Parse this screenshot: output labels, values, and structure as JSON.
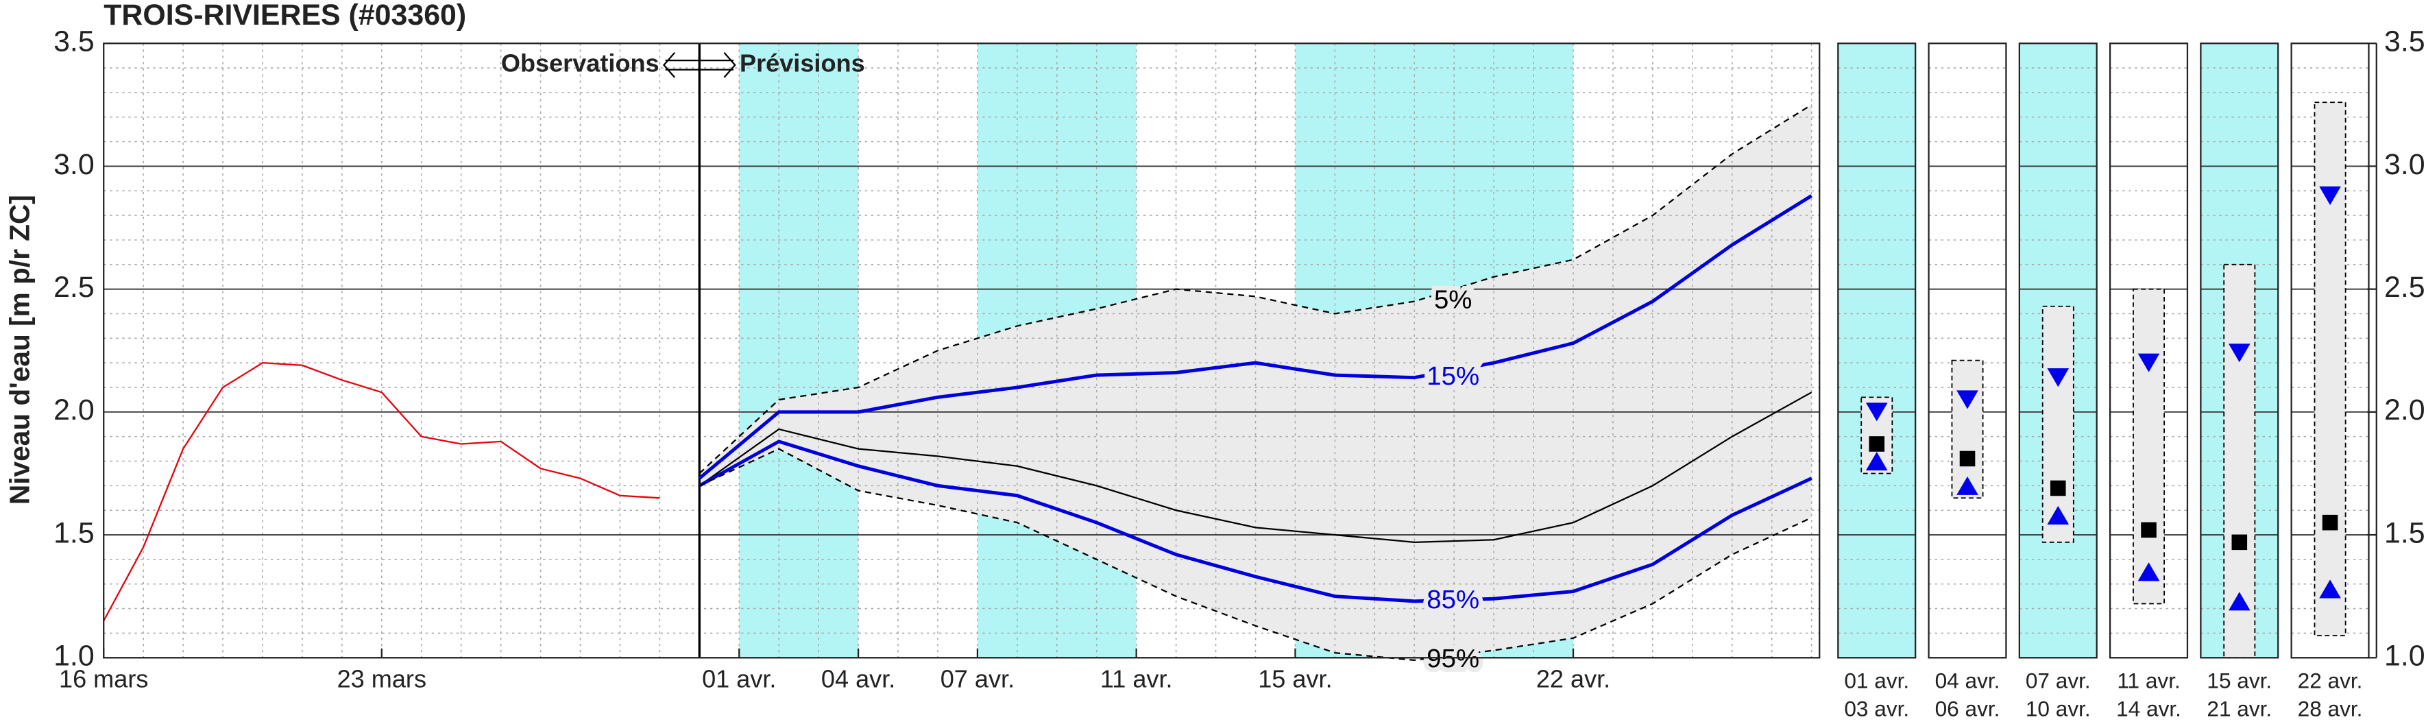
{
  "chart_data": {
    "type": "line",
    "title": "TROIS-RIVIERES (#03360)",
    "ylabel": "Niveau d'eau [m p/r ZC]",
    "annotation": {
      "left": "Observations",
      "right": "Prévisions",
      "x": 15
    },
    "xlim": [
      0,
      43.2
    ],
    "xticks": [
      {
        "value": 0,
        "label": "16 mars"
      },
      {
        "value": 7,
        "label": "23 mars"
      },
      {
        "value": 16,
        "label": "01 avr."
      },
      {
        "value": 19,
        "label": "04 avr."
      },
      {
        "value": 22,
        "label": "07 avr."
      },
      {
        "value": 26,
        "label": "11 avr."
      },
      {
        "value": 30,
        "label": "15 avr."
      },
      {
        "value": 37,
        "label": "22 avr."
      }
    ],
    "ylim": [
      1.0,
      3.5
    ],
    "yticks": [
      {
        "value": 1,
        "label": "1.0"
      },
      1.5,
      {
        "value": 2,
        "label": "2.0"
      },
      2.5,
      {
        "value": 3,
        "label": "3.0"
      },
      3.5
    ],
    "y2lim": [
      1.0,
      3.5
    ],
    "y2ticks": [
      {
        "value": 1,
        "label": "1.0"
      },
      1.5,
      {
        "value": 2,
        "label": "2.0"
      },
      2.5,
      {
        "value": 3,
        "label": "3.0"
      },
      3.5
    ],
    "grid": true,
    "shaded_periods": [
      [
        16,
        19
      ],
      [
        22,
        26
      ],
      [
        30,
        37
      ]
    ],
    "shade_color": "#b3f5f5",
    "band_color": "#ebebeb",
    "series": [
      {
        "color": "#e8000b",
        "style": "solid",
        "x": [
          0,
          1,
          2,
          3,
          4,
          5,
          6,
          7,
          8,
          9,
          10,
          11,
          12,
          13,
          14
        ],
        "values": [
          1.15,
          1.45,
          1.85,
          2.1,
          2.2,
          2.19,
          2.13,
          2.08,
          1.9,
          1.87,
          1.88,
          1.77,
          1.73,
          1.66,
          1.65
        ]
      },
      {
        "name": "5%",
        "color": "#000000",
        "style": "dashed",
        "x": [
          15,
          17,
          19,
          21,
          23,
          25,
          27,
          29,
          31,
          33,
          35,
          37,
          39,
          41,
          43
        ],
        "values": [
          1.75,
          2.05,
          2.1,
          2.25,
          2.35,
          2.42,
          2.5,
          2.47,
          2.4,
          2.45,
          2.55,
          2.62,
          2.8,
          3.05,
          3.25
        ]
      },
      {
        "name": "15%",
        "color": "#0000dd",
        "style": "solid",
        "x": [
          15,
          17,
          19,
          21,
          23,
          25,
          27,
          29,
          31,
          33,
          35,
          37,
          39,
          41,
          43
        ],
        "values": [
          1.73,
          2.0,
          2.0,
          2.06,
          2.1,
          2.15,
          2.16,
          2.2,
          2.15,
          2.14,
          2.2,
          2.28,
          2.45,
          2.68,
          2.88
        ]
      },
      {
        "color": "#000000",
        "style": "thin",
        "x": [
          15,
          17,
          19,
          21,
          23,
          25,
          27,
          29,
          31,
          33,
          35,
          37,
          39,
          41,
          43
        ],
        "values": [
          1.7,
          1.93,
          1.85,
          1.82,
          1.78,
          1.7,
          1.6,
          1.53,
          1.5,
          1.47,
          1.48,
          1.55,
          1.7,
          1.9,
          2.08
        ]
      },
      {
        "name": "85%",
        "color": "#0000dd",
        "style": "solid",
        "x": [
          15,
          17,
          19,
          21,
          23,
          25,
          27,
          29,
          31,
          33,
          35,
          37,
          39,
          41,
          43
        ],
        "values": [
          1.7,
          1.88,
          1.78,
          1.7,
          1.66,
          1.55,
          1.42,
          1.33,
          1.25,
          1.23,
          1.24,
          1.27,
          1.38,
          1.58,
          1.73
        ]
      },
      {
        "name": "95%",
        "color": "#000000",
        "style": "dashed",
        "x": [
          15,
          17,
          19,
          21,
          23,
          25,
          27,
          29,
          31,
          33,
          35,
          37,
          39,
          41,
          43
        ],
        "values": [
          1.7,
          1.85,
          1.68,
          1.62,
          1.55,
          1.4,
          1.25,
          1.13,
          1.02,
          0.99,
          1.03,
          1.08,
          1.22,
          1.42,
          1.57
        ]
      }
    ],
    "boxes": {
      "periods": [
        [
          "01 avr.",
          "03 avr."
        ],
        [
          "04 avr.",
          "06 avr."
        ],
        [
          "07 avr.",
          "10 avr."
        ],
        [
          "11 avr.",
          "14 avr."
        ],
        [
          "15 avr.",
          "21 avr."
        ],
        [
          "22 avr.",
          "28 avr."
        ]
      ],
      "shaded": [
        true,
        false,
        true,
        false,
        true,
        false
      ],
      "high": [
        2.06,
        2.21,
        2.43,
        2.5,
        2.6,
        3.26
      ],
      "low": [
        1.75,
        1.65,
        1.47,
        1.22,
        1.0,
        1.09
      ],
      "p15": [
        2.0,
        2.05,
        2.14,
        2.2,
        2.24,
        2.88
      ],
      "median": [
        1.87,
        1.81,
        1.69,
        1.52,
        1.47,
        1.55
      ],
      "p85": [
        1.8,
        1.7,
        1.58,
        1.35,
        1.23,
        1.28
      ]
    }
  }
}
